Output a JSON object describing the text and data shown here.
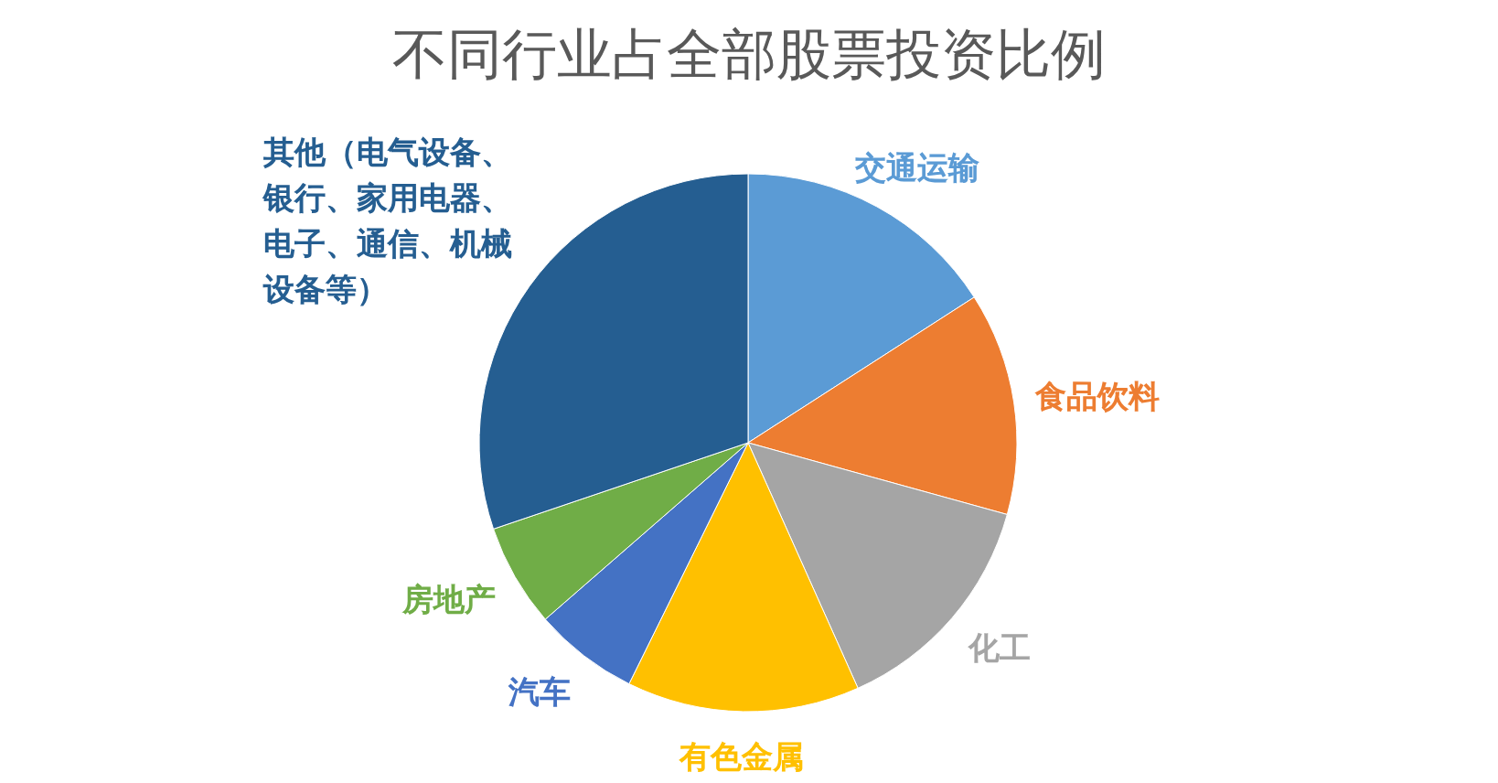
{
  "chart_data": {
    "type": "pie",
    "title": "不同行业占全部股票投资比例",
    "categories": [
      "交通运输",
      "食品饮料",
      "化工",
      "有色金属",
      "汽车",
      "房地产",
      "其他（电气设备、银行、家用电器、电子、通信、机械设备等）"
    ],
    "values": [
      15.9,
      13.4,
      14.0,
      14.0,
      6.3,
      6.2,
      30.2
    ],
    "colors": [
      "#5b9bd5",
      "#ed7d31",
      "#a5a5a5",
      "#ffc000",
      "#4472c4",
      "#70ad47",
      "#255e91"
    ]
  }
}
